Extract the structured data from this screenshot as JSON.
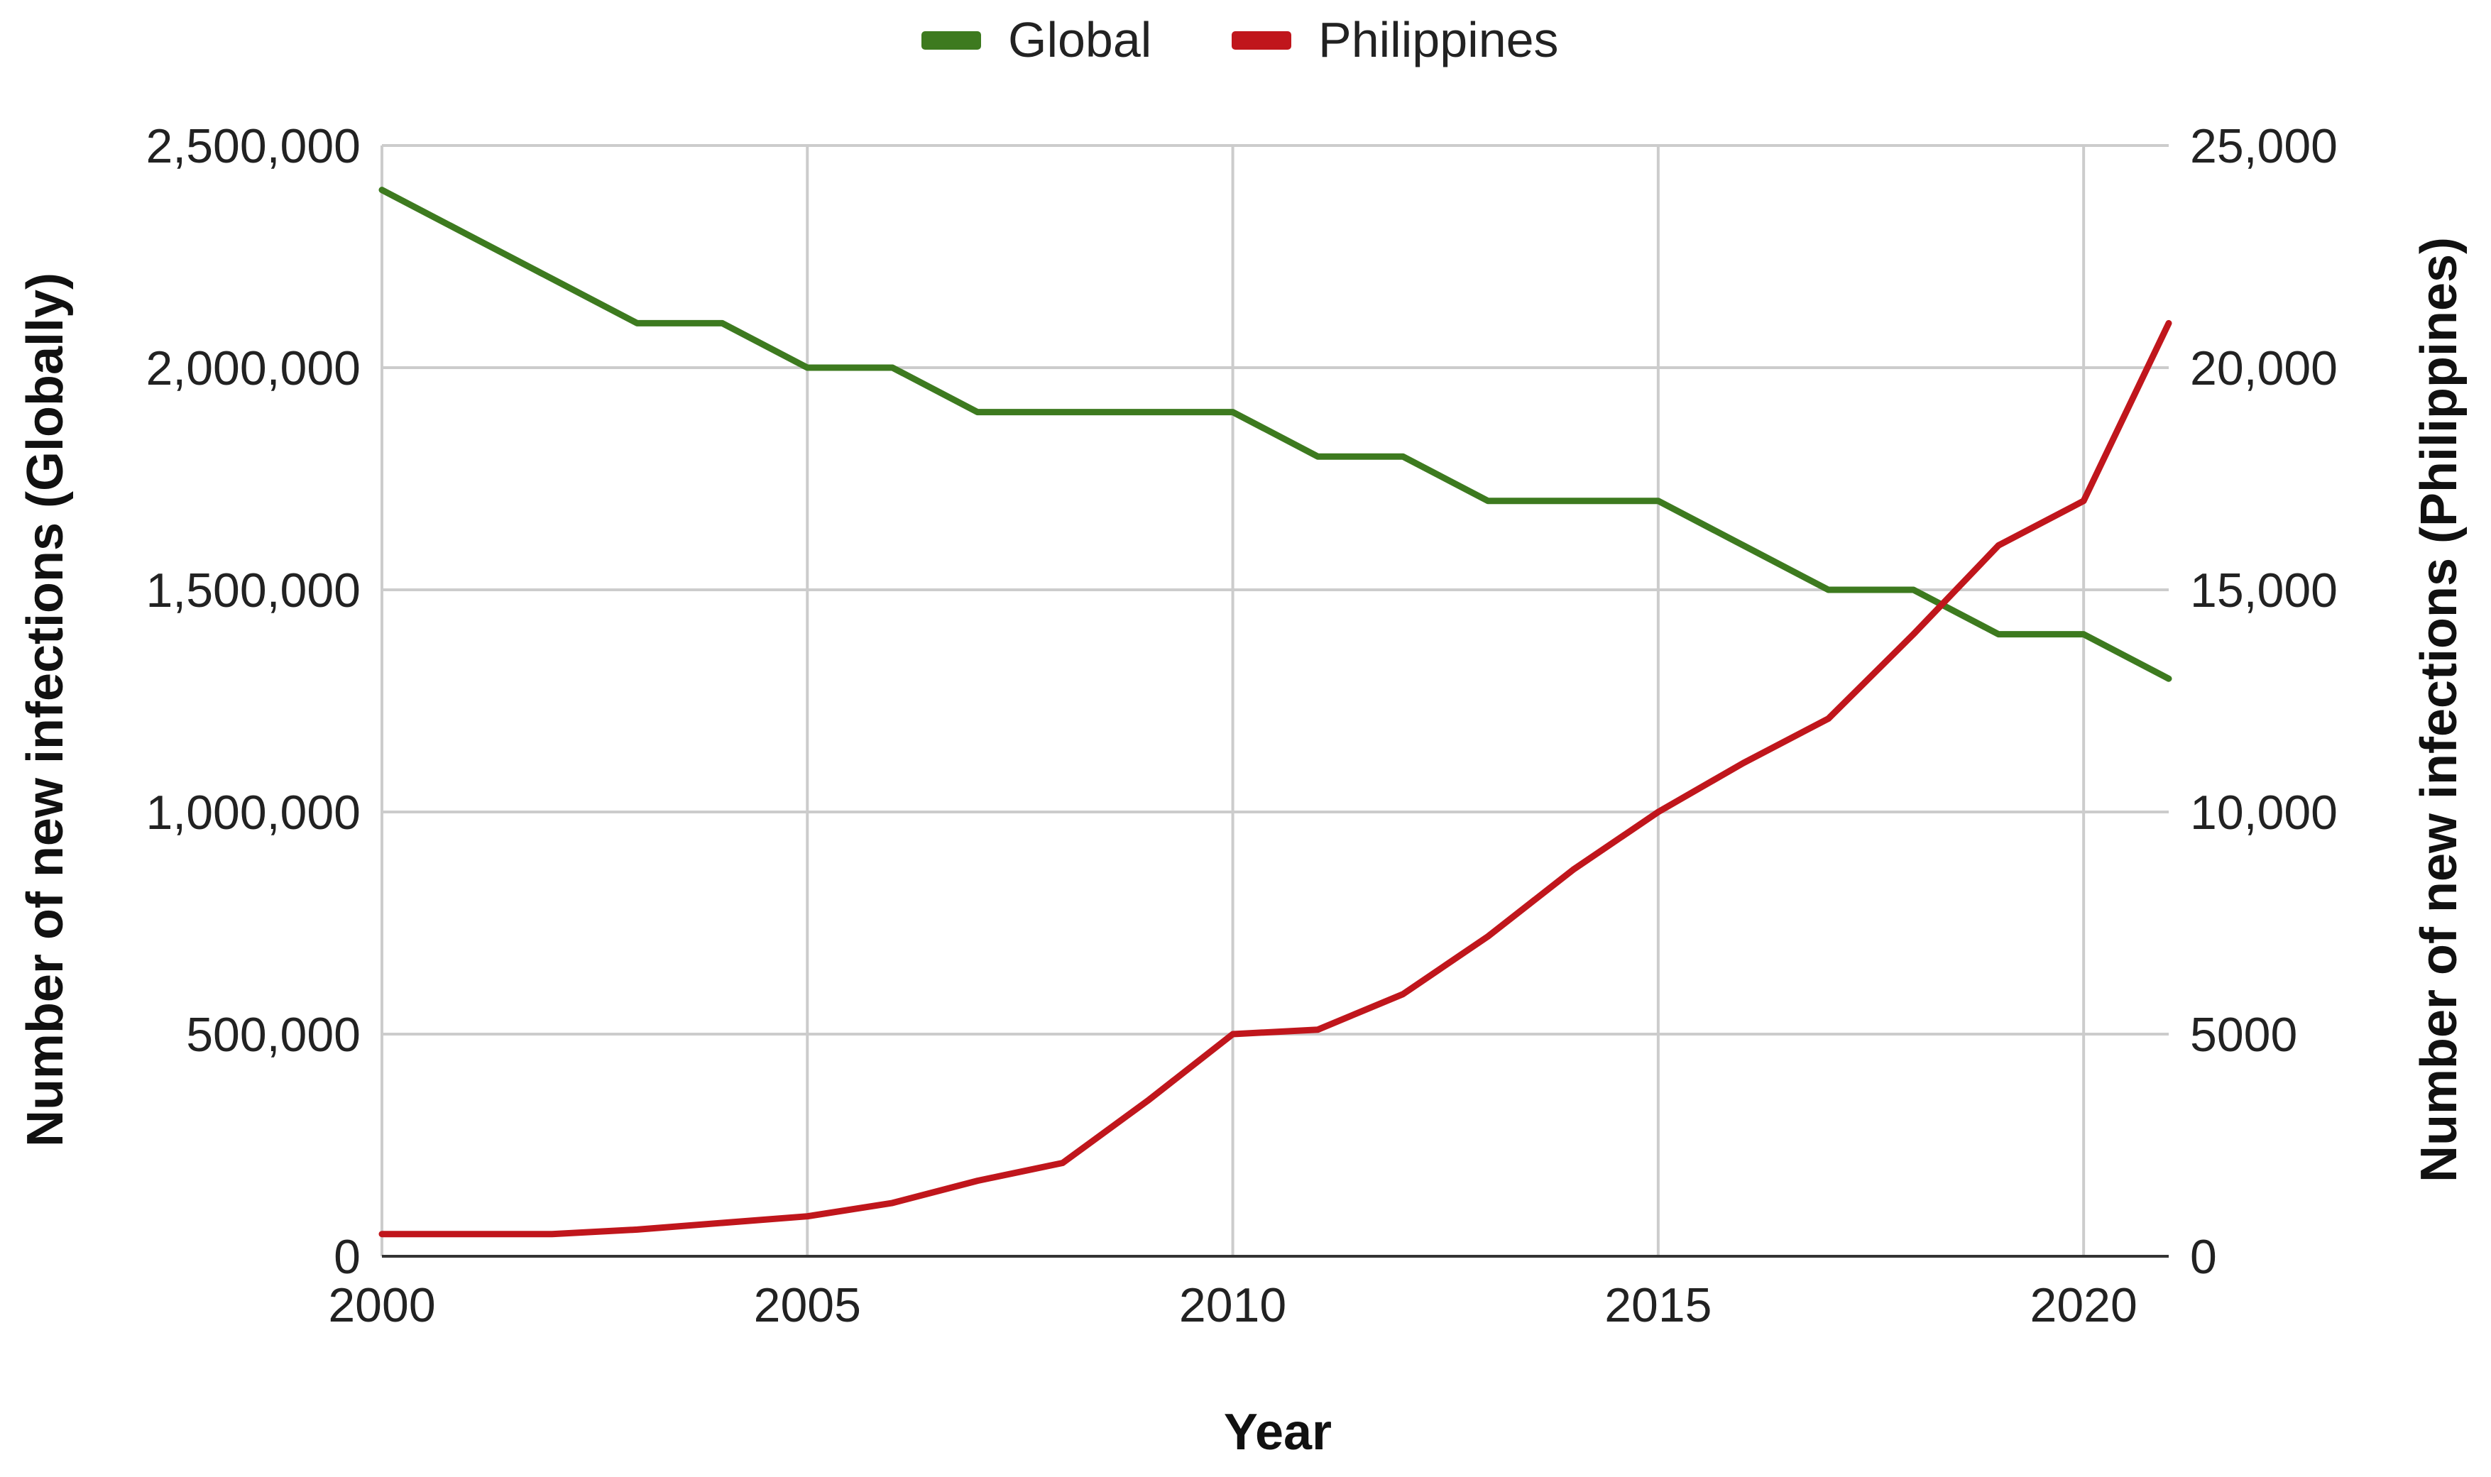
{
  "chart_data": {
    "type": "line",
    "x": [
      2000,
      2001,
      2002,
      2003,
      2004,
      2005,
      2006,
      2007,
      2008,
      2009,
      2010,
      2011,
      2012,
      2013,
      2014,
      2015,
      2016,
      2017,
      2018,
      2019,
      2020,
      2021
    ],
    "xlabel": "Year",
    "xlim": [
      2000,
      2021
    ],
    "x_ticks": [
      2000,
      2005,
      2010,
      2015,
      2020
    ],
    "x_tick_labels": [
      "2000",
      "2005",
      "2010",
      "2015",
      "2020"
    ],
    "ylabel_left": "Number of new infections (Globally)",
    "ylim_left": [
      0,
      2500000
    ],
    "y_left_ticks": [
      0,
      500000,
      1000000,
      1500000,
      2000000,
      2500000
    ],
    "y_left_tick_labels": [
      "0",
      "500,000",
      "1,000,000",
      "1,500,000",
      "2,000,000",
      "2,500,000"
    ],
    "ylabel_right": "Number of new infections (Philippines)",
    "ylim_right": [
      0,
      25000
    ],
    "y_right_ticks": [
      0,
      5000,
      10000,
      15000,
      20000,
      25000
    ],
    "y_right_tick_labels": [
      "0",
      "5000",
      "10,000",
      "15,000",
      "20,000",
      "25,000"
    ],
    "grid": true,
    "legend_position": "top-center",
    "series": [
      {
        "name": "Global",
        "axis": "left",
        "color": "#3d7a1f",
        "values": [
          2400000,
          2300000,
          2200000,
          2100000,
          2100000,
          2000000,
          2000000,
          1900000,
          1900000,
          1900000,
          1900000,
          1800000,
          1800000,
          1700000,
          1700000,
          1700000,
          1600000,
          1500000,
          1500000,
          1400000,
          1400000,
          1300000
        ]
      },
      {
        "name": "Philippines",
        "axis": "right",
        "color": "#c0161c",
        "values": [
          500,
          500,
          500,
          600,
          750,
          900,
          1200,
          1700,
          2100,
          3500,
          5000,
          5100,
          5900,
          7200,
          8700,
          10000,
          11100,
          12100,
          14000,
          16000,
          17000,
          21000
        ]
      }
    ]
  }
}
